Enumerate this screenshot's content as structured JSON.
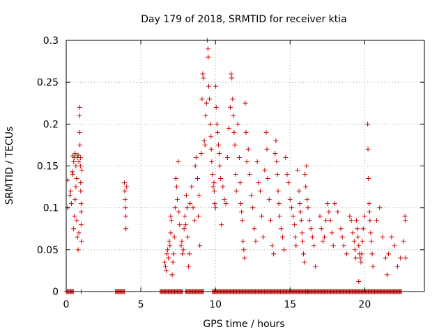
{
  "chart_data": {
    "type": "scatter",
    "title": "Day 179 of 2018, SRMTID for receiver ktia",
    "xlabel": "GPS time / hours",
    "ylabel": "SRMTID / TECUs",
    "xlim": [
      0,
      24
    ],
    "ylim": [
      0,
      0.3
    ],
    "xticks": [
      0,
      5,
      10,
      15,
      20
    ],
    "yticks": [
      0,
      0.05,
      0.1,
      0.15,
      0.2,
      0.25,
      0.3
    ],
    "xtick_labels": [
      "0",
      "5",
      "10",
      "15",
      "20"
    ],
    "ytick_labels": [
      "0",
      "0.05",
      "0.1",
      "0.15",
      "0.2",
      "0.25",
      "0.3"
    ],
    "grid": true,
    "marker": "+",
    "series": [
      {
        "name": "SRMTID",
        "color": "#cc0000",
        "points": [
          [
            0.1,
            0.133
          ],
          [
            0.1,
            0.1
          ],
          [
            0.25,
            0.115
          ],
          [
            0.3,
            0.12
          ],
          [
            0.35,
            0.105
          ],
          [
            0.4,
            0.143
          ],
          [
            0.45,
            0.14
          ],
          [
            0.45,
            0.162
          ],
          [
            0.5,
            0.155
          ],
          [
            0.5,
            0.075
          ],
          [
            0.55,
            0.16
          ],
          [
            0.55,
            0.09
          ],
          [
            0.6,
            0.165
          ],
          [
            0.6,
            0.11
          ],
          [
            0.65,
            0.15
          ],
          [
            0.65,
            0.125
          ],
          [
            0.7,
            0.135
          ],
          [
            0.7,
            0.085
          ],
          [
            0.75,
            0.16
          ],
          [
            0.75,
            0.065
          ],
          [
            0.8,
            0.163
          ],
          [
            0.8,
            0.05
          ],
          [
            0.85,
            0.155
          ],
          [
            0.85,
            0.07
          ],
          [
            0.9,
            0.22
          ],
          [
            0.9,
            0.21
          ],
          [
            0.9,
            0.19
          ],
          [
            0.92,
            0.175
          ],
          [
            0.95,
            0.16
          ],
          [
            0.95,
            0.15
          ],
          [
            0.97,
            0.13
          ],
          [
            0.97,
            0.12
          ],
          [
            1.0,
            0.105
          ],
          [
            1.0,
            0.095
          ],
          [
            1.0,
            0.08
          ],
          [
            1.02,
            0.06
          ],
          [
            1.05,
            0.145
          ],
          [
            3.9,
            0.13
          ],
          [
            3.92,
            0.12
          ],
          [
            3.95,
            0.11
          ],
          [
            3.97,
            0.1
          ],
          [
            4.0,
            0.09
          ],
          [
            4.0,
            0.075
          ],
          [
            4.05,
            0.125
          ],
          [
            6.6,
            0.035
          ],
          [
            6.65,
            0.03
          ],
          [
            6.7,
            0.025
          ],
          [
            6.75,
            0.045
          ],
          [
            6.8,
            0.05
          ],
          [
            6.85,
            0.04
          ],
          [
            6.9,
            0.06
          ],
          [
            6.95,
            0.055
          ],
          [
            7.0,
            0.09
          ],
          [
            7.0,
            0.07
          ],
          [
            7.05,
            0.085
          ],
          [
            7.1,
            0.02
          ],
          [
            7.15,
            0.035
          ],
          [
            7.2,
            0.045
          ],
          [
            7.25,
            0.065
          ],
          [
            7.3,
            0.1
          ],
          [
            7.35,
            0.135
          ],
          [
            7.4,
            0.125
          ],
          [
            7.45,
            0.11
          ],
          [
            7.5,
            0.155
          ],
          [
            7.55,
            0.095
          ],
          [
            7.6,
            0.08
          ],
          [
            7.7,
            0.055
          ],
          [
            7.75,
            0.06
          ],
          [
            7.8,
            0.045
          ],
          [
            7.85,
            0.05
          ],
          [
            7.9,
            0.075
          ],
          [
            7.95,
            0.09
          ],
          [
            8.0,
            0.08
          ],
          [
            8.05,
            0.115
          ],
          [
            8.1,
            0.1
          ],
          [
            8.15,
            0.065
          ],
          [
            8.2,
            0.03
          ],
          [
            8.25,
            0.045
          ],
          [
            8.3,
            0.105
          ],
          [
            8.4,
            0.125
          ],
          [
            8.5,
            0.1
          ],
          [
            8.6,
            0.085
          ],
          [
            8.65,
            0.15
          ],
          [
            8.7,
            0.16
          ],
          [
            8.8,
            0.135
          ],
          [
            8.85,
            0.09
          ],
          [
            8.9,
            0.115
          ],
          [
            8.95,
            0.055
          ],
          [
            9.05,
            0.165
          ],
          [
            9.1,
            0.23
          ],
          [
            9.15,
            0.26
          ],
          [
            9.2,
            0.255
          ],
          [
            9.25,
            0.18
          ],
          [
            9.3,
            0.175
          ],
          [
            9.35,
            0.21
          ],
          [
            9.4,
            0.225
          ],
          [
            9.45,
            0.3
          ],
          [
            9.5,
            0.29
          ],
          [
            9.52,
            0.28
          ],
          [
            9.55,
            0.245
          ],
          [
            9.6,
            0.23
          ],
          [
            9.65,
            0.2
          ],
          [
            9.7,
            0.185
          ],
          [
            9.72,
            0.17
          ],
          [
            9.75,
            0.155
          ],
          [
            9.8,
            0.14
          ],
          [
            9.85,
            0.125
          ],
          [
            9.9,
            0.13
          ],
          [
            9.92,
            0.12
          ],
          [
            9.95,
            0.105
          ],
          [
            10.0,
            0.1
          ],
          [
            10.02,
            0.245
          ],
          [
            10.05,
            0.22
          ],
          [
            10.1,
            0.2
          ],
          [
            10.15,
            0.19
          ],
          [
            10.2,
            0.175
          ],
          [
            10.25,
            0.165
          ],
          [
            10.3,
            0.15
          ],
          [
            10.35,
            0.135
          ],
          [
            10.4,
            0.08
          ],
          [
            10.5,
            0.125
          ],
          [
            10.6,
            0.11
          ],
          [
            10.7,
            0.105
          ],
          [
            10.8,
            0.16
          ],
          [
            10.9,
            0.195
          ],
          [
            11.0,
            0.22
          ],
          [
            11.05,
            0.26
          ],
          [
            11.1,
            0.255
          ],
          [
            11.15,
            0.23
          ],
          [
            11.2,
            0.21
          ],
          [
            11.25,
            0.19
          ],
          [
            11.3,
            0.175
          ],
          [
            11.35,
            0.14
          ],
          [
            11.4,
            0.12
          ],
          [
            11.5,
            0.2
          ],
          [
            11.6,
            0.16
          ],
          [
            11.65,
            0.13
          ],
          [
            11.7,
            0.105
          ],
          [
            11.75,
            0.095
          ],
          [
            11.8,
            0.085
          ],
          [
            11.85,
            0.06
          ],
          [
            11.9,
            0.05
          ],
          [
            11.95,
            0.04
          ],
          [
            12.0,
            0.225
          ],
          [
            12.05,
            0.19
          ],
          [
            12.1,
            0.155
          ],
          [
            12.2,
            0.17
          ],
          [
            12.3,
            0.14
          ],
          [
            12.4,
            0.115
          ],
          [
            12.5,
            0.1
          ],
          [
            12.6,
            0.075
          ],
          [
            12.7,
            0.06
          ],
          [
            12.8,
            0.155
          ],
          [
            12.9,
            0.13
          ],
          [
            13.0,
            0.12
          ],
          [
            13.1,
            0.09
          ],
          [
            13.2,
            0.065
          ],
          [
            13.3,
            0.145
          ],
          [
            13.4,
            0.19
          ],
          [
            13.45,
            0.17
          ],
          [
            13.5,
            0.135
          ],
          [
            13.6,
            0.11
          ],
          [
            13.7,
            0.085
          ],
          [
            13.8,
            0.055
          ],
          [
            13.9,
            0.045
          ],
          [
            14.0,
            0.165
          ],
          [
            14.05,
            0.18
          ],
          [
            14.1,
            0.155
          ],
          [
            14.15,
            0.14
          ],
          [
            14.2,
            0.12
          ],
          [
            14.25,
            0.105
          ],
          [
            14.3,
            0.09
          ],
          [
            14.4,
            0.075
          ],
          [
            14.5,
            0.065
          ],
          [
            14.6,
            0.05
          ],
          [
            14.7,
            0.16
          ],
          [
            14.8,
            0.14
          ],
          [
            14.9,
            0.13
          ],
          [
            15.0,
            0.11
          ],
          [
            15.1,
            0.1
          ],
          [
            15.2,
            0.09
          ],
          [
            15.3,
            0.08
          ],
          [
            15.35,
            0.065
          ],
          [
            15.4,
            0.055
          ],
          [
            15.5,
            0.145
          ],
          [
            15.6,
            0.12
          ],
          [
            15.65,
            0.105
          ],
          [
            15.7,
            0.095
          ],
          [
            15.75,
            0.085
          ],
          [
            15.8,
            0.07
          ],
          [
            15.85,
            0.06
          ],
          [
            15.9,
            0.045
          ],
          [
            15.95,
            0.035
          ],
          [
            16.0,
            0.14
          ],
          [
            16.05,
            0.125
          ],
          [
            16.1,
            0.15
          ],
          [
            16.15,
            0.11
          ],
          [
            16.2,
            0.1
          ],
          [
            16.3,
            0.085
          ],
          [
            16.4,
            0.075
          ],
          [
            16.5,
            0.065
          ],
          [
            16.6,
            0.055
          ],
          [
            16.7,
            0.03
          ],
          [
            17.0,
            0.09
          ],
          [
            17.1,
            0.075
          ],
          [
            17.2,
            0.06
          ],
          [
            17.3,
            0.065
          ],
          [
            17.4,
            0.085
          ],
          [
            17.5,
            0.105
          ],
          [
            17.6,
            0.095
          ],
          [
            17.7,
            0.085
          ],
          [
            17.8,
            0.07
          ],
          [
            17.9,
            0.055
          ],
          [
            18.0,
            0.105
          ],
          [
            18.2,
            0.095
          ],
          [
            18.4,
            0.075
          ],
          [
            18.5,
            0.065
          ],
          [
            18.6,
            0.055
          ],
          [
            18.8,
            0.045
          ],
          [
            19.0,
            0.09
          ],
          [
            19.1,
            0.085
          ],
          [
            19.2,
            0.07
          ],
          [
            19.3,
            0.06
          ],
          [
            19.35,
            0.05
          ],
          [
            19.4,
            0.04
          ],
          [
            19.45,
            0.085
          ],
          [
            19.5,
            0.075
          ],
          [
            19.55,
            0.065
          ],
          [
            19.6,
            0.055
          ],
          [
            19.65,
            0.045
          ],
          [
            19.7,
            0.04
          ],
          [
            19.75,
            0.035
          ],
          [
            19.8,
            0.045
          ],
          [
            19.85,
            0.06
          ],
          [
            19.9,
            0.075
          ],
          [
            20.0,
            0.09
          ],
          [
            20.2,
            0.2
          ],
          [
            20.22,
            0.17
          ],
          [
            20.25,
            0.135
          ],
          [
            20.3,
            0.105
          ],
          [
            20.32,
            0.095
          ],
          [
            20.35,
            0.085
          ],
          [
            20.4,
            0.07
          ],
          [
            20.45,
            0.06
          ],
          [
            20.5,
            0.045
          ],
          [
            20.55,
            0.03
          ],
          [
            20.8,
            0.085
          ],
          [
            21.0,
            0.1
          ],
          [
            21.2,
            0.065
          ],
          [
            21.4,
            0.04
          ],
          [
            21.5,
            0.02
          ],
          [
            21.6,
            0.045
          ],
          [
            21.8,
            0.065
          ],
          [
            22.0,
            0.055
          ],
          [
            22.2,
            0.03
          ],
          [
            22.4,
            0.04
          ],
          [
            22.6,
            0.06
          ],
          [
            22.7,
            0.09
          ],
          [
            22.72,
            0.085
          ],
          [
            22.75,
            0.04
          ],
          [
            11.2,
            0.0
          ],
          [
            16.2,
            0.0
          ],
          [
            19.6,
            0.012
          ]
        ],
        "zero_runs": [
          [
            0.0,
            0.5
          ],
          [
            1.0,
            1.05
          ],
          [
            3.3,
            3.95
          ],
          [
            6.3,
            7.8
          ],
          [
            8.0,
            9.2
          ],
          [
            9.8,
            22.5
          ]
        ]
      }
    ]
  }
}
